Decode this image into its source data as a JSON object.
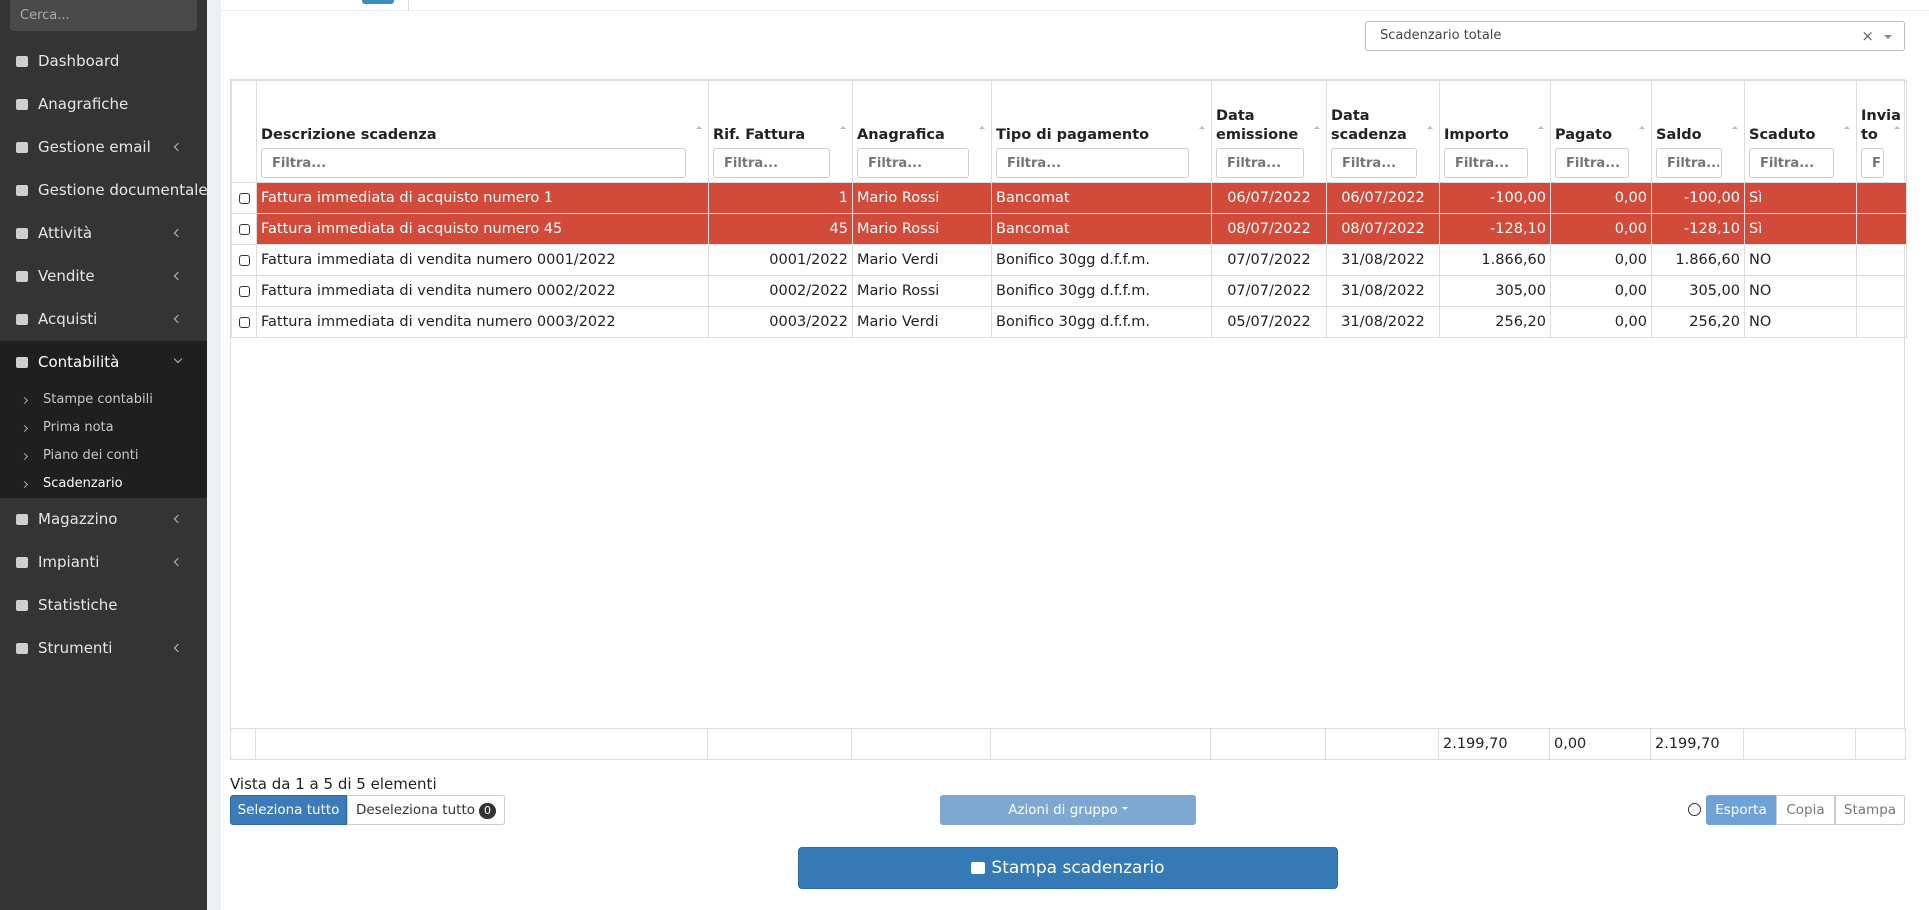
{
  "sidebar": {
    "search_placeholder": "Cerca...",
    "items": [
      {
        "label": "Dashboard",
        "expandable": false
      },
      {
        "label": "Anagrafiche",
        "expandable": false
      },
      {
        "label": "Gestione email",
        "expandable": true
      },
      {
        "label": "Gestione documentale",
        "expandable": false
      },
      {
        "label": "Attività",
        "expandable": true
      },
      {
        "label": "Vendite",
        "expandable": true
      },
      {
        "label": "Acquisti",
        "expandable": true
      },
      {
        "label": "Contabilità",
        "expandable": true,
        "active": true,
        "children": [
          "Stampe contabili",
          "Prima nota",
          "Piano dei conti",
          "Scadenzario"
        ],
        "current_child": 3
      },
      {
        "label": "Magazzino",
        "expandable": true
      },
      {
        "label": "Impianti",
        "expandable": true
      },
      {
        "label": "Statistiche",
        "expandable": false
      },
      {
        "label": "Strumenti",
        "expandable": true
      }
    ]
  },
  "filter_select": {
    "value": "Scadenzario totale",
    "clear": "×"
  },
  "table": {
    "filter_placeholder": "Filtra...",
    "columns": [
      "Descrizione scadenza",
      "Rif. Fattura",
      "Anagrafica",
      "Tipo di pagamento",
      "Data emissione",
      "Data scadenza",
      "Importo",
      "Pagato",
      "Saldo",
      "Scaduto",
      "Inviato"
    ],
    "rows": [
      {
        "cells": [
          "Fattura immediata di acquisto numero 1",
          "1",
          "Mario Rossi",
          "Bancomat",
          "06/07/2022",
          "06/07/2022",
          "-100,00",
          "0,00",
          "-100,00",
          "Sì",
          ""
        ],
        "highlight": true
      },
      {
        "cells": [
          "Fattura immediata di acquisto numero 45",
          "45",
          "Mario Rossi",
          "Bancomat",
          "08/07/2022",
          "08/07/2022",
          "-128,10",
          "0,00",
          "-128,10",
          "Sì",
          ""
        ],
        "highlight": true
      },
      {
        "cells": [
          "Fattura immediata di vendita numero 0001/2022",
          "0001/2022",
          "Mario Verdi",
          "Bonifico 30gg d.f.f.m.",
          "07/07/2022",
          "31/08/2022",
          "1.866,60",
          "0,00",
          "1.866,60",
          "NO",
          ""
        ],
        "highlight": false
      },
      {
        "cells": [
          "Fattura immediata di vendita numero 0002/2022",
          "0002/2022",
          "Mario Rossi",
          "Bonifico 30gg d.f.f.m.",
          "07/07/2022",
          "31/08/2022",
          "305,00",
          "0,00",
          "305,00",
          "NO",
          ""
        ],
        "highlight": false
      },
      {
        "cells": [
          "Fattura immediata di vendita numero 0003/2022",
          "0003/2022",
          "Mario Verdi",
          "Bonifico 30gg d.f.f.m.",
          "05/07/2022",
          "31/08/2022",
          "256,20",
          "0,00",
          "256,20",
          "NO",
          ""
        ],
        "highlight": false
      }
    ],
    "totals": [
      "",
      "",
      "",
      "",
      "",
      "",
      "2.199,70",
      "0,00",
      "2.199,70",
      "",
      ""
    ],
    "highlight_color": "#d24a3a"
  },
  "footer": {
    "info": "Vista da 1 a 5 di 5 elementi",
    "select_all": "Seleziona tutto",
    "deselect_all": "Deseleziona tutto",
    "selected_count": "0",
    "group_actions": "Azioni di gruppo",
    "export_buttons": [
      "Esporta",
      "Copia",
      "Stampa"
    ],
    "print_button": "Stampa scadenzario"
  }
}
